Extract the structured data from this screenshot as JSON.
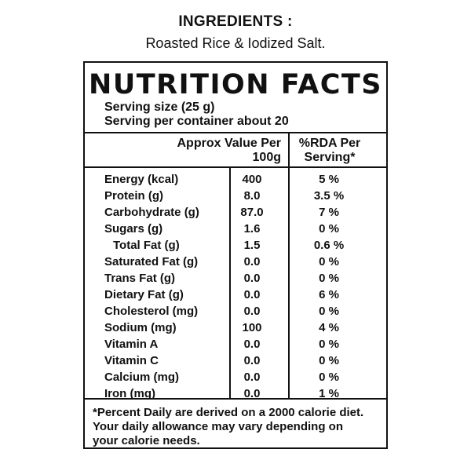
{
  "ingredients": {
    "title": "INGREDIENTS :",
    "text": "Roasted Rice & Iodized Salt."
  },
  "panel": {
    "title": "NUTRITION FACTS",
    "serving_size": "Serving size (25 g)",
    "servings_per_container": "Serving per container about 20",
    "col_value_line1": "Approx Value Per",
    "col_value_line2": "100g",
    "col_rda_line1": "%RDA Per",
    "col_rda_line2": "Serving*",
    "nutrients": [
      {
        "name": "Energy (kcal)",
        "value": "400",
        "rda": "5 %"
      },
      {
        "name": "Protein (g)",
        "value": "8.0",
        "rda": "3.5 %"
      },
      {
        "name": "Carbohydrate (g)",
        "value": "87.0",
        "rda": "7 %"
      },
      {
        "name": "Sugars (g)",
        "value": "1.6",
        "rda": "0 %"
      },
      {
        "name": "Total Fat (g)",
        "value": "1.5",
        "rda": "0.6 %"
      },
      {
        "name": "Saturated Fat (g)",
        "value": "0.0",
        "rda": "0 %"
      },
      {
        "name": "Trans Fat (g)",
        "value": "0.0",
        "rda": "0 %"
      },
      {
        "name": "Dietary Fat (g)",
        "value": "0.0",
        "rda": "6 %"
      },
      {
        "name": "Cholesterol (mg)",
        "value": "0.0",
        "rda": "0 %"
      },
      {
        "name": "Sodium (mg)",
        "value": "100",
        "rda": "4 %"
      },
      {
        "name": "Vitamin A",
        "value": "0.0",
        "rda": "0 %"
      },
      {
        "name": "Vitamin C",
        "value": "0.0",
        "rda": "0 %"
      },
      {
        "name": "Calcium (mg)",
        "value": "0.0",
        "rda": "0 %"
      },
      {
        "name": "Iron (mg)",
        "value": "0.0",
        "rda": "1 %"
      }
    ],
    "footnote_line1": "*Percent Daily are derived on a 2000 calorie diet.",
    "footnote_line2": "Your daily allowance may vary depending on",
    "footnote_line3": "your calorie needs."
  }
}
